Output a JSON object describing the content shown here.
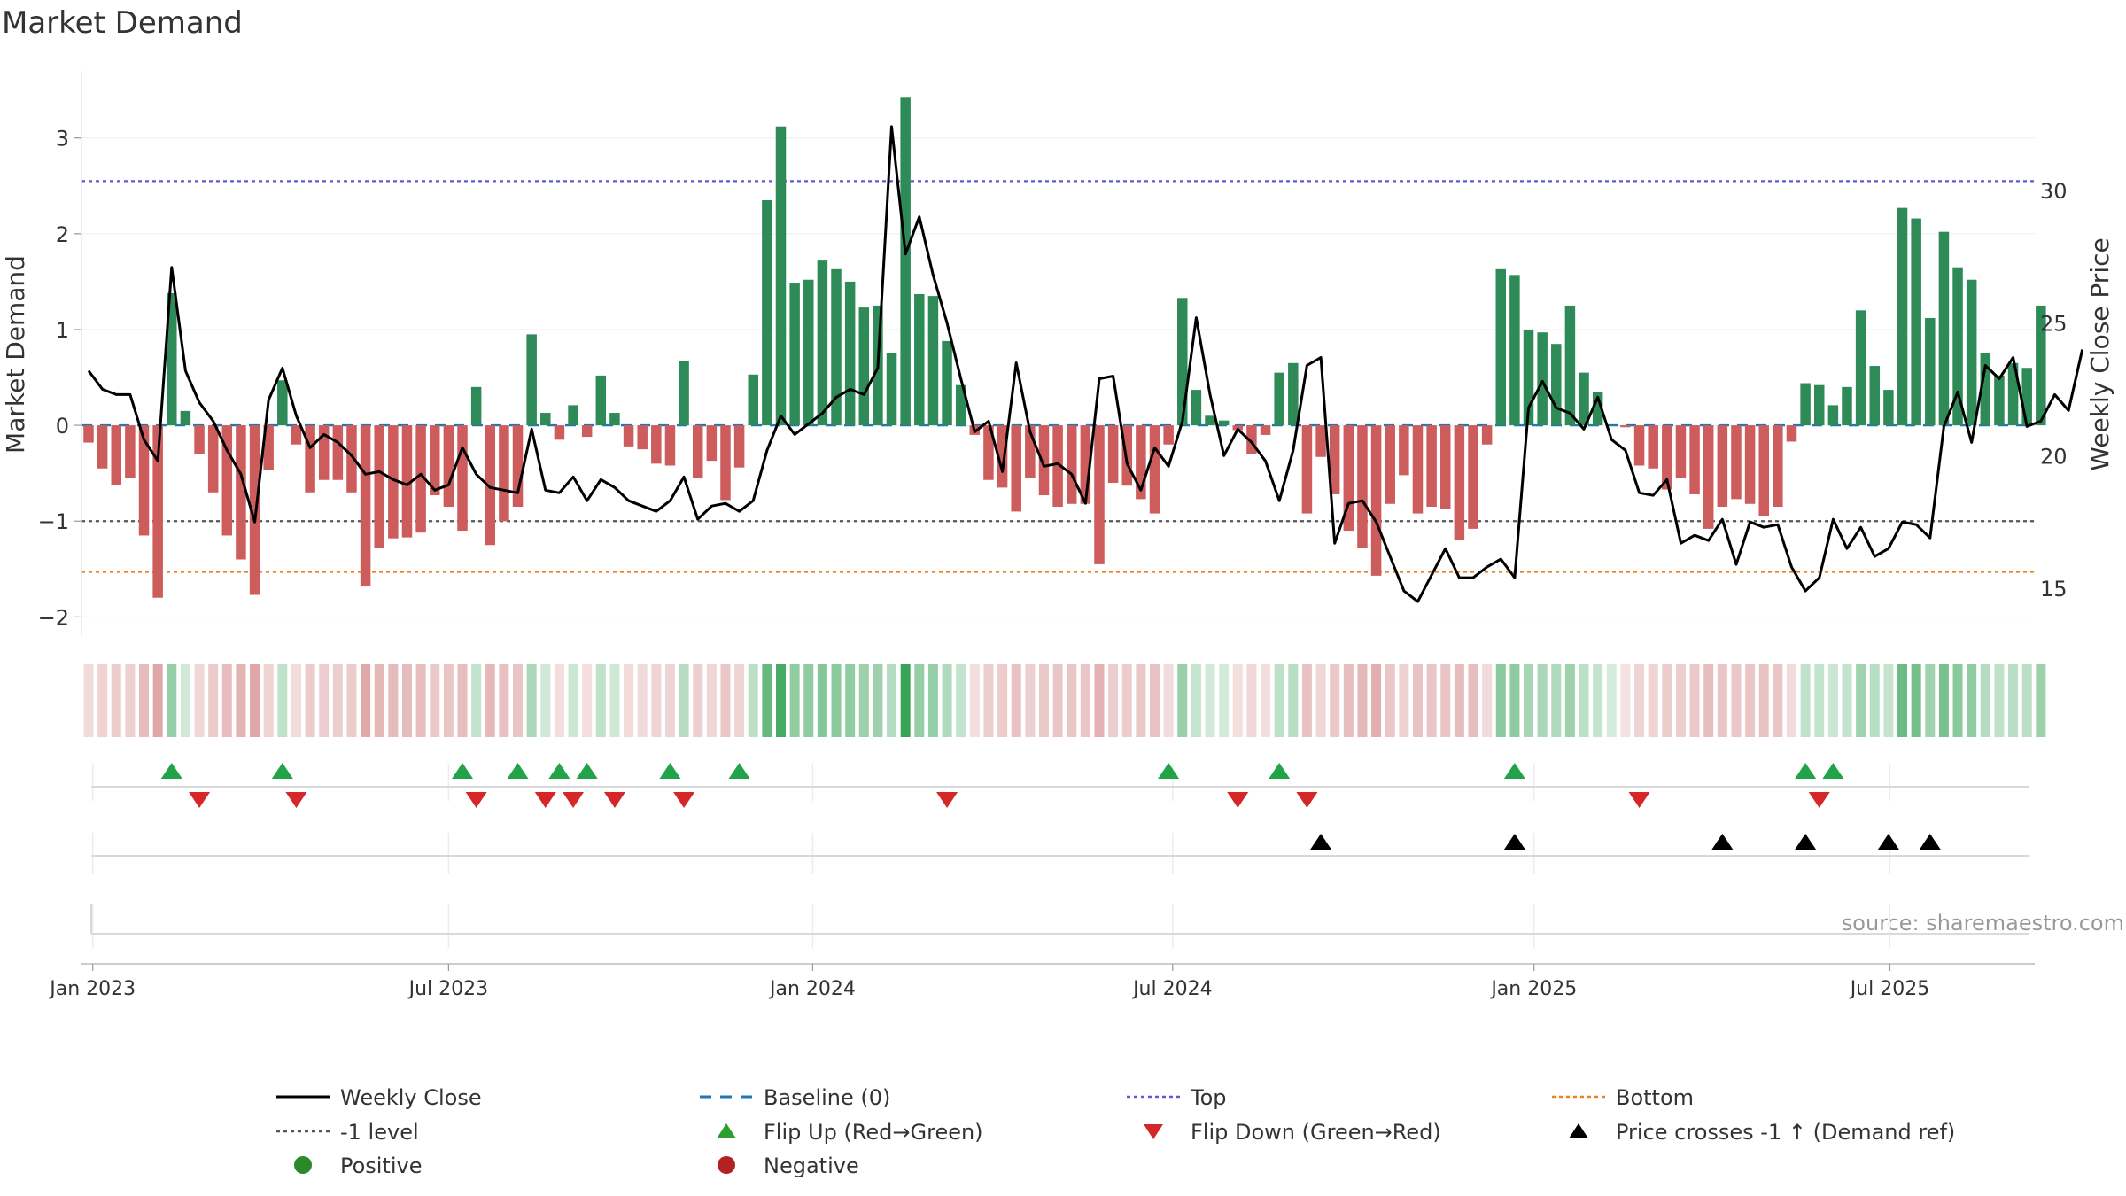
{
  "chart_data": {
    "type": "bar",
    "title": "Market Demand",
    "ylabel": "Market Demand",
    "y2label": "Weekly Close Price",
    "xlabel": "",
    "source": "source: sharemaestro.com",
    "ylim": [
      -2.2,
      3.7
    ],
    "y2lim": [
      13.2,
      34.5
    ],
    "yticks": [
      -2,
      -1,
      0,
      1,
      2,
      3
    ],
    "ytick_labels": [
      "−2",
      "−1",
      "0",
      "1",
      "2",
      "3"
    ],
    "y2ticks": [
      15,
      20,
      25,
      30
    ],
    "y2tick_labels": [
      "15",
      "20",
      "25",
      "30"
    ],
    "xticks": [
      {
        "label": "Jan 2023",
        "week": 0.3
      },
      {
        "label": "Jul 2023",
        "week": 26
      },
      {
        "label": "Jan 2024",
        "week": 52.3
      },
      {
        "label": "Jul 2024",
        "week": 78.3
      },
      {
        "label": "Jan 2025",
        "week": 104.4
      },
      {
        "label": "Jul 2025",
        "week": 130.1
      }
    ],
    "reference_levels": {
      "top": 2.55,
      "bottom": -1.53,
      "minus_one": -1,
      "baseline": 0
    },
    "demand": [
      -0.18,
      -0.45,
      -0.62,
      -0.55,
      -1.15,
      -1.8,
      1.38,
      0.15,
      -0.3,
      -0.7,
      -1.15,
      -1.4,
      -1.77,
      -0.47,
      0.47,
      -0.2,
      -0.7,
      -0.57,
      -0.57,
      -0.7,
      -1.68,
      -1.28,
      -1.18,
      -1.17,
      -1.12,
      -0.73,
      -0.85,
      -1.1,
      0.4,
      -1.25,
      -1.0,
      -0.85,
      0.95,
      0.13,
      -0.15,
      0.21,
      -0.12,
      0.52,
      0.13,
      -0.22,
      -0.25,
      -0.4,
      -0.42,
      0.67,
      -0.55,
      -0.37,
      -0.78,
      -0.44,
      0.53,
      2.35,
      3.12,
      1.48,
      1.52,
      1.72,
      1.63,
      1.5,
      1.23,
      1.25,
      0.75,
      3.42,
      1.37,
      1.35,
      0.88,
      0.42,
      -0.1,
      -0.57,
      -0.65,
      -0.9,
      -0.55,
      -0.73,
      -0.85,
      -0.82,
      -0.82,
      -1.45,
      -0.6,
      -0.63,
      -0.77,
      -0.92,
      -0.2,
      1.33,
      0.37,
      0.1,
      0.05,
      -0.05,
      -0.3,
      -0.1,
      0.55,
      0.65,
      -0.92,
      -0.33,
      -0.72,
      -1.1,
      -1.28,
      -1.57,
      -0.82,
      -0.52,
      -0.92,
      -0.85,
      -0.87,
      -1.2,
      -1.08,
      -0.2,
      1.63,
      1.57,
      1.0,
      0.97,
      0.85,
      1.25,
      0.55,
      0.35,
      0.0,
      -0.02,
      -0.42,
      -0.45,
      -0.67,
      -0.55,
      -0.72,
      -1.08,
      -0.85,
      -0.77,
      -0.82,
      -0.95,
      -0.85,
      -0.17,
      0.44,
      0.42,
      0.21,
      0.4,
      1.2,
      0.62,
      0.37,
      2.27,
      2.16,
      1.12,
      2.02,
      1.65,
      1.52,
      0.75,
      0.52,
      0.65,
      0.6,
      1.25
    ],
    "weekly_close": [
      23.2,
      22.5,
      22.3,
      22.3,
      20.6,
      19.8,
      27.1,
      23.2,
      22.0,
      21.3,
      20.2,
      19.3,
      17.5,
      22.1,
      23.3,
      21.5,
      20.3,
      20.8,
      20.5,
      20.0,
      19.3,
      19.4,
      19.1,
      18.9,
      19.3,
      18.7,
      18.9,
      20.3,
      19.3,
      18.8,
      18.7,
      18.6,
      21.0,
      18.7,
      18.6,
      19.2,
      18.3,
      19.1,
      18.8,
      18.3,
      18.1,
      17.9,
      18.3,
      19.2,
      17.6,
      18.1,
      18.2,
      17.9,
      18.3,
      20.2,
      21.5,
      20.8,
      21.2,
      21.6,
      22.2,
      22.5,
      22.3,
      23.3,
      32.4,
      27.6,
      29.0,
      26.8,
      25.0,
      22.9,
      20.9,
      21.3,
      19.4,
      23.5,
      20.9,
      19.6,
      19.7,
      19.3,
      18.2,
      22.9,
      23.0,
      19.7,
      18.7,
      20.3,
      19.6,
      21.3,
      25.2,
      22.3,
      20.0,
      21.0,
      20.5,
      19.8,
      18.3,
      20.2,
      23.4,
      23.7,
      16.7,
      18.2,
      18.3,
      17.5,
      16.2,
      14.9,
      14.5,
      15.5,
      16.5,
      15.4,
      15.4,
      15.8,
      16.1,
      15.4,
      21.8,
      22.8,
      21.8,
      21.6,
      21.0,
      22.2,
      20.6,
      20.2,
      18.6,
      18.5,
      19.1,
      16.7,
      17.0,
      16.8,
      17.6,
      15.9,
      17.5,
      17.3,
      17.4,
      15.8,
      14.9,
      15.4,
      17.6,
      16.5,
      17.3,
      16.2,
      16.5,
      17.5,
      17.4,
      16.9,
      21.1,
      22.4,
      20.5,
      23.4,
      22.9,
      23.7,
      21.1,
      21.3,
      22.3,
      21.7,
      24.0
    ],
    "flip_up_weeks": [
      6,
      14,
      27,
      31,
      34,
      36,
      42,
      47,
      78,
      86,
      103,
      124,
      126
    ],
    "flip_down_weeks": [
      8,
      15,
      28,
      33,
      35,
      38,
      43,
      62,
      83,
      88,
      112,
      125
    ],
    "price_cross_weeks": [
      89,
      103,
      118,
      124,
      130,
      133
    ],
    "legend": [
      {
        "label": "Weekly Close",
        "symbol": "line",
        "color": "#000000"
      },
      {
        "label": "Baseline (0)",
        "symbol": "dash",
        "color": "#1f77b4"
      },
      {
        "label": "Top",
        "symbol": "dot",
        "color": "#5b5bd6"
      },
      {
        "label": "Bottom",
        "symbol": "dot",
        "color": "#e8821d"
      },
      {
        "label": "-1 level",
        "symbol": "dot",
        "color": "#555555"
      },
      {
        "label": "Flip Up (Red→Green)",
        "symbol": "tri-up",
        "color": "#2ca02c"
      },
      {
        "label": "Flip Down (Green→Red)",
        "symbol": "tri-down",
        "color": "#d62728"
      },
      {
        "label": "Price crosses -1 ↑ (Demand ref)",
        "symbol": "tri-up",
        "color": "#000000"
      },
      {
        "label": "Positive",
        "symbol": "circle",
        "color": "#2a8a2a"
      },
      {
        "label": "Negative",
        "symbol": "circle",
        "color": "#b22222"
      }
    ],
    "colors": {
      "positive_bar": "#2e8b57",
      "negative_bar": "#cd5c5c",
      "price_line": "#000000",
      "top_line": "#5b5bd6",
      "bottom_line": "#e8821d",
      "minus_one_line": "#555555",
      "baseline": "#1f77b4",
      "flip_up": "#22a34a",
      "flip_down": "#d62728",
      "price_cross": "#000000"
    }
  }
}
